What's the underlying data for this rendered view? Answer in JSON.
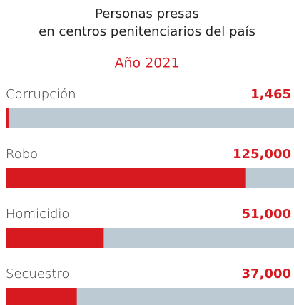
{
  "chart_data": {
    "type": "bar",
    "orientation": "horizontal",
    "title": [
      "Personas presas",
      "en centros penitenciarios del país"
    ],
    "subtitle": "Año 2021",
    "categories": [
      "Corrupción",
      "Robo",
      "Homicidio",
      "Secuestro"
    ],
    "values": [
      1465,
      125000,
      51000,
      37000
    ],
    "value_labels": [
      "1,465",
      "125,000",
      "51,000",
      "37,000"
    ],
    "color": "#d71920",
    "track_color": "#bccbd3",
    "xlim": [
      0,
      150000
    ]
  }
}
